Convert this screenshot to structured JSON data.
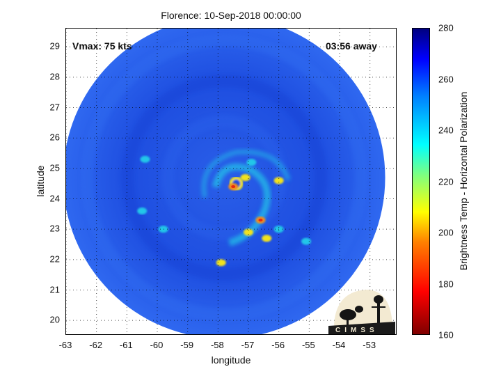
{
  "title": "Florence: 10-Sep-2018 00:00:00",
  "xlabel": "longitude",
  "ylabel": "latitude",
  "colorbar": {
    "label": "Brightness Temp - Horizontal Polarization",
    "min": 160,
    "max": 280,
    "ticks": [
      "160",
      "180",
      "200",
      "220",
      "240",
      "260",
      "280"
    ],
    "colormap": "jet"
  },
  "vmax_label": "Vmax: 75 kts",
  "time_label": "03:56 away",
  "x_ticks": [
    "-63",
    "-62",
    "-61",
    "-60",
    "-59",
    "-58",
    "-57",
    "-56",
    "-55",
    "-54",
    "-53"
  ],
  "y_ticks": [
    "20",
    "21",
    "22",
    "23",
    "24",
    "25",
    "26",
    "27",
    "28",
    "29"
  ],
  "xlim": [
    -63,
    -52.1
  ],
  "ylim": [
    19.5,
    29.6
  ],
  "grid": true,
  "logo": {
    "text": "CIMSS"
  },
  "colors": {
    "background_blue": "#1a4ddc",
    "deep_blue": "#1236c8",
    "cyan": "#22c6e8",
    "yellow": "#f2e21a",
    "orange": "#f28a1a",
    "red": "#e62a10"
  },
  "scene": {
    "swath_center": [
      -57.8,
      24.7
    ],
    "swath_radius_deg": 5.3,
    "eye": [
      -57.4,
      24.5
    ],
    "hot_spots": [
      {
        "lon": -57.1,
        "lat": 24.7,
        "level": "yellow"
      },
      {
        "lon": -57.5,
        "lat": 24.4,
        "level": "orange"
      },
      {
        "lon": -56.6,
        "lat": 23.3,
        "level": "orange"
      },
      {
        "lon": -57.0,
        "lat": 22.9,
        "level": "yellow"
      },
      {
        "lon": -56.9,
        "lat": 25.2,
        "level": "cyan"
      },
      {
        "lon": -56.0,
        "lat": 24.6,
        "level": "yellow"
      },
      {
        "lon": -57.9,
        "lat": 21.9,
        "level": "yellow"
      },
      {
        "lon": -60.4,
        "lat": 25.3,
        "level": "cyan"
      },
      {
        "lon": -60.5,
        "lat": 23.6,
        "level": "cyan"
      },
      {
        "lon": -59.8,
        "lat": 23.0,
        "level": "cyan"
      },
      {
        "lon": -56.4,
        "lat": 22.7,
        "level": "yellow"
      },
      {
        "lon": -56.0,
        "lat": 23.0,
        "level": "cyan"
      },
      {
        "lon": -55.1,
        "lat": 22.6,
        "level": "cyan"
      }
    ]
  }
}
